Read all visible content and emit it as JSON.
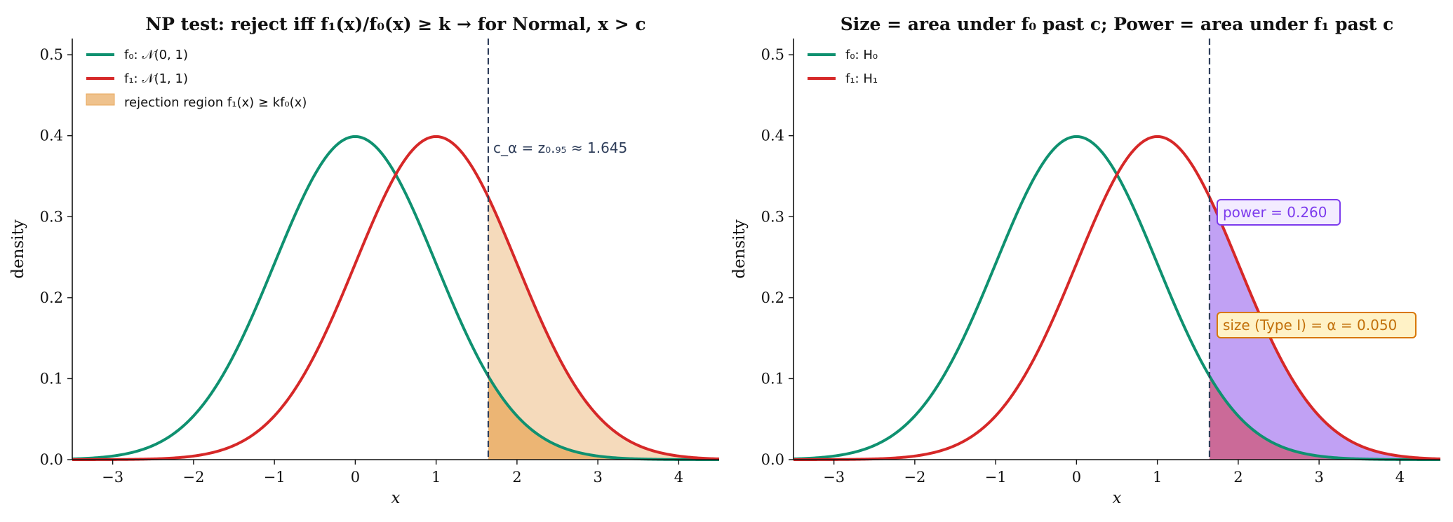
{
  "colors": {
    "f0": "#0f9170",
    "f1": "#d62828",
    "rejection_fill": "#e8a85c",
    "power_fill": "#a779f0",
    "threshold_line": "#2f3e5a",
    "power_box_border": "#7c3aed",
    "power_box_fill": "#f3ecff",
    "power_text": "#7c3aed",
    "size_box_border": "#d97706",
    "size_box_fill": "#fff2c6",
    "size_text": "#c2700a"
  },
  "chart_data": [
    {
      "type": "line",
      "title": "NP test: reject iff f₁(x)/f₀(x) ≥ k  →  for Normal, x > c",
      "xlabel": "x",
      "ylabel": "density",
      "xlim": [
        -3.5,
        4.5
      ],
      "ylim": [
        0,
        0.52
      ],
      "xticks": [
        -3,
        -2,
        -1,
        0,
        1,
        2,
        3,
        4
      ],
      "xtick_labels": [
        "−3",
        "−2",
        "−1",
        "0",
        "1",
        "2",
        "3",
        "4"
      ],
      "yticks": [
        0.0,
        0.1,
        0.2,
        0.3,
        0.4,
        0.5
      ],
      "ytick_labels": [
        "0.0",
        "0.1",
        "0.2",
        "0.3",
        "0.4",
        "0.5"
      ],
      "grid": false,
      "legend_position": "top-left",
      "series": [
        {
          "name": "f₀:  𝒩(0, 1)",
          "distribution": "normal",
          "mean": 0,
          "sd": 1,
          "color_key": "f0"
        },
        {
          "name": "f₁:  𝒩(1, 1)",
          "distribution": "normal",
          "mean": 1,
          "sd": 1,
          "color_key": "f1"
        }
      ],
      "shaded_regions": [
        {
          "name": "rejection region  f₁(x) ≥ kf₀(x)",
          "x_from": 1.645,
          "x_to": 4.5,
          "under": "f1",
          "opacity": 0.42
        },
        {
          "name": "",
          "x_from": 1.645,
          "x_to": 4.5,
          "under": "f0",
          "opacity": 0.75
        }
      ],
      "threshold": 1.645,
      "threshold_label": "c_α = z₀.₉₅ ≈ 1.645"
    },
    {
      "type": "line",
      "title": "Size = area under f₀ past c;  Power = area under f₁ past c",
      "xlabel": "x",
      "ylabel": "density",
      "xlim": [
        -3.5,
        4.5
      ],
      "ylim": [
        0,
        0.52
      ],
      "xticks": [
        -3,
        -2,
        -1,
        0,
        1,
        2,
        3,
        4
      ],
      "xtick_labels": [
        "−3",
        "−2",
        "−1",
        "0",
        "1",
        "2",
        "3",
        "4"
      ],
      "yticks": [
        0.0,
        0.1,
        0.2,
        0.3,
        0.4,
        0.5
      ],
      "ytick_labels": [
        "0.0",
        "0.1",
        "0.2",
        "0.3",
        "0.4",
        "0.5"
      ],
      "grid": false,
      "legend_position": "top-left",
      "series": [
        {
          "name": "f₀:  H₀",
          "distribution": "normal",
          "mean": 0,
          "sd": 1,
          "color_key": "f0"
        },
        {
          "name": "f₁:  H₁",
          "distribution": "normal",
          "mean": 1,
          "sd": 1,
          "color_key": "f1"
        }
      ],
      "shaded_regions": [
        {
          "name": "",
          "x_from": 1.645,
          "x_to": 4.5,
          "under": "f1",
          "color_key": "power_fill",
          "opacity": 0.7
        },
        {
          "name": "",
          "x_from": 1.645,
          "x_to": 4.5,
          "under": "f0",
          "color_key": "f1",
          "opacity": 0.45
        }
      ],
      "threshold": 1.645,
      "annotations": [
        {
          "text": "power  = 0.260",
          "style": "power"
        },
        {
          "text": "size (Type I)  = α = 0.050",
          "style": "size"
        }
      ],
      "power": 0.26,
      "size": 0.05
    }
  ]
}
